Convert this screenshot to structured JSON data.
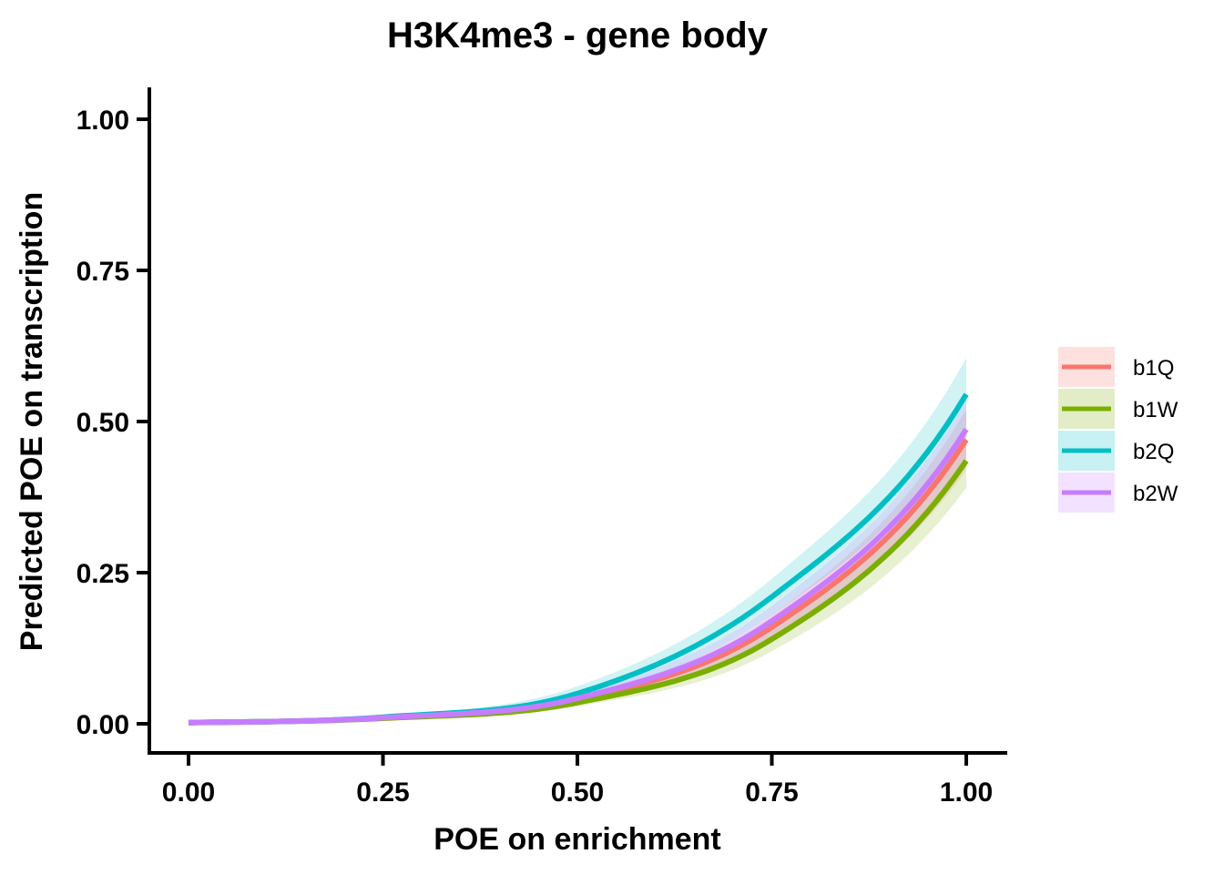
{
  "chart_data": {
    "type": "line",
    "title": "H3K4me3 - gene body",
    "xlabel": "POE on enrichment",
    "ylabel": "Predicted POE on transcription",
    "xlim": [
      -0.05,
      1.05
    ],
    "ylim": [
      -0.05,
      1.05
    ],
    "x_ticks": [
      "0.00",
      "0.25",
      "0.50",
      "0.75",
      "1.00"
    ],
    "y_ticks": [
      "0.00",
      "0.25",
      "0.50",
      "0.75",
      "1.00"
    ],
    "x": [
      0.0,
      0.25,
      0.5,
      0.75,
      1.0
    ],
    "grid": false,
    "legend_position": "right",
    "series": [
      {
        "name": "b1Q",
        "color": "#F8766D",
        "values": [
          0.002,
          0.01,
          0.04,
          0.16,
          0.47
        ],
        "lower": [
          0.001,
          0.008,
          0.033,
          0.14,
          0.42
        ],
        "upper": [
          0.003,
          0.012,
          0.047,
          0.18,
          0.52
        ]
      },
      {
        "name": "b1W",
        "color": "#7CAE00",
        "values": [
          0.002,
          0.009,
          0.035,
          0.14,
          0.435
        ],
        "lower": [
          0.001,
          0.007,
          0.029,
          0.12,
          0.39
        ],
        "upper": [
          0.003,
          0.011,
          0.041,
          0.16,
          0.48
        ]
      },
      {
        "name": "b2Q",
        "color": "#00BFC4",
        "values": [
          0.002,
          0.011,
          0.05,
          0.21,
          0.545
        ],
        "lower": [
          0.001,
          0.009,
          0.04,
          0.18,
          0.49
        ],
        "upper": [
          0.003,
          0.013,
          0.062,
          0.24,
          0.605
        ]
      },
      {
        "name": "b2W",
        "color": "#C77CFF",
        "values": [
          0.002,
          0.01,
          0.042,
          0.17,
          0.487
        ],
        "lower": [
          0.001,
          0.008,
          0.034,
          0.145,
          0.44
        ],
        "upper": [
          0.003,
          0.012,
          0.05,
          0.195,
          0.535
        ]
      }
    ]
  }
}
